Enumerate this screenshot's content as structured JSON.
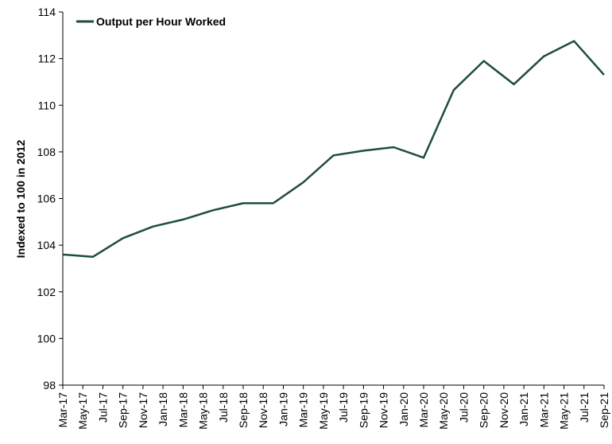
{
  "chart_data": {
    "type": "line",
    "ylabel": "Indexed to 100 in 2012",
    "xlabel": "",
    "ylim": [
      98,
      114
    ],
    "yticks": [
      98,
      100,
      102,
      104,
      106,
      108,
      110,
      112,
      114
    ],
    "x_tick_labels": [
      "Mar-17",
      "May-17",
      "Jul-17",
      "Sep-17",
      "Nov-17",
      "Jan-18",
      "Mar-18",
      "May-18",
      "Jul-18",
      "Sep-18",
      "Nov-18",
      "Jan-19",
      "Mar-19",
      "May-19",
      "Jul-19",
      "Sep-19",
      "Nov-19",
      "Jan-20",
      "Mar-20",
      "May-20",
      "Jul-20",
      "Sep-20",
      "Nov-20",
      "Jan-21",
      "Mar-21",
      "May-21",
      "Jul-21",
      "Sep-21"
    ],
    "x": [
      "Mar-17",
      "Jun-17",
      "Sep-17",
      "Dec-17",
      "Mar-18",
      "Jun-18",
      "Sep-18",
      "Dec-18",
      "Mar-19",
      "Jun-19",
      "Sep-19",
      "Dec-19",
      "Mar-20",
      "Jun-20",
      "Sep-20",
      "Dec-20",
      "Mar-21",
      "Jun-21",
      "Sep-21"
    ],
    "series": [
      {
        "name": "Output per Hour Worked",
        "color": "#1e4d3b",
        "values": [
          103.6,
          103.5,
          104.3,
          104.8,
          105.1,
          105.5,
          105.8,
          105.8,
          106.7,
          107.85,
          108.05,
          108.2,
          107.75,
          110.65,
          111.9,
          110.9,
          112.1,
          112.75,
          111.3
        ]
      }
    ],
    "legend_position": "top-left",
    "grid": false
  }
}
